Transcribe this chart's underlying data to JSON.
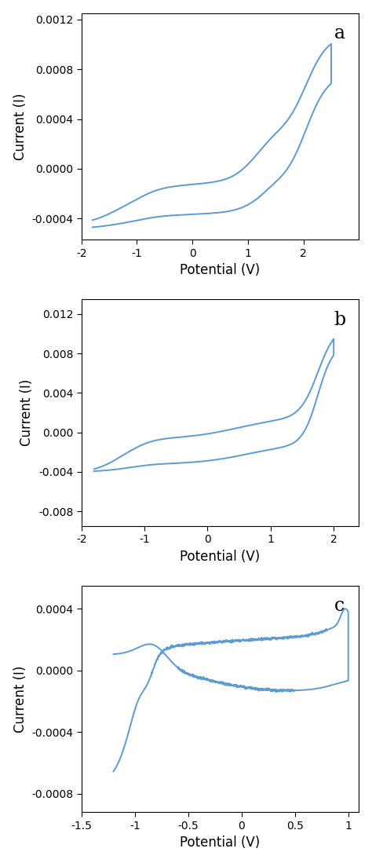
{
  "line_color": "#5b9bd5",
  "line_width": 1.4,
  "bg_color": "#ffffff",
  "xlabel": "Potential (V)",
  "ylabel": "Current (I)",
  "label_fontsize": 12,
  "tick_fontsize": 10,
  "panel_labels": [
    "a",
    "b",
    "c"
  ],
  "panel_label_fontsize": 17,
  "plots": [
    {
      "xlim": [
        -2.0,
        3.0
      ],
      "ylim": [
        -0.00057,
        0.00125
      ],
      "xticks": [
        -2,
        -1,
        0,
        1,
        2
      ],
      "yticks": [
        -0.0004,
        0.0,
        0.0004,
        0.0008,
        0.0012
      ],
      "ytick_labels": [
        "-0.0004",
        "0.0000",
        "0.0004",
        "0.0008",
        "0.0012"
      ]
    },
    {
      "xlim": [
        -2.0,
        2.4
      ],
      "ylim": [
        -0.0095,
        0.0135
      ],
      "xticks": [
        -2,
        -1,
        0,
        1,
        2
      ],
      "yticks": [
        -0.008,
        -0.004,
        0.0,
        0.004,
        0.008,
        0.012
      ],
      "ytick_labels": [
        "-0.008",
        "-0.004",
        "0.000",
        "0.004",
        "0.008",
        "0.012"
      ]
    },
    {
      "xlim": [
        -1.5,
        1.1
      ],
      "ylim": [
        -0.00092,
        0.00055
      ],
      "xticks": [
        -1.5,
        -1.0,
        -0.5,
        0.0,
        0.5,
        1.0
      ],
      "yticks": [
        -0.0008,
        -0.0004,
        0.0,
        0.0004
      ],
      "ytick_labels": [
        "-0.0008",
        "-0.0004",
        "0.0000",
        "0.0004"
      ]
    }
  ]
}
